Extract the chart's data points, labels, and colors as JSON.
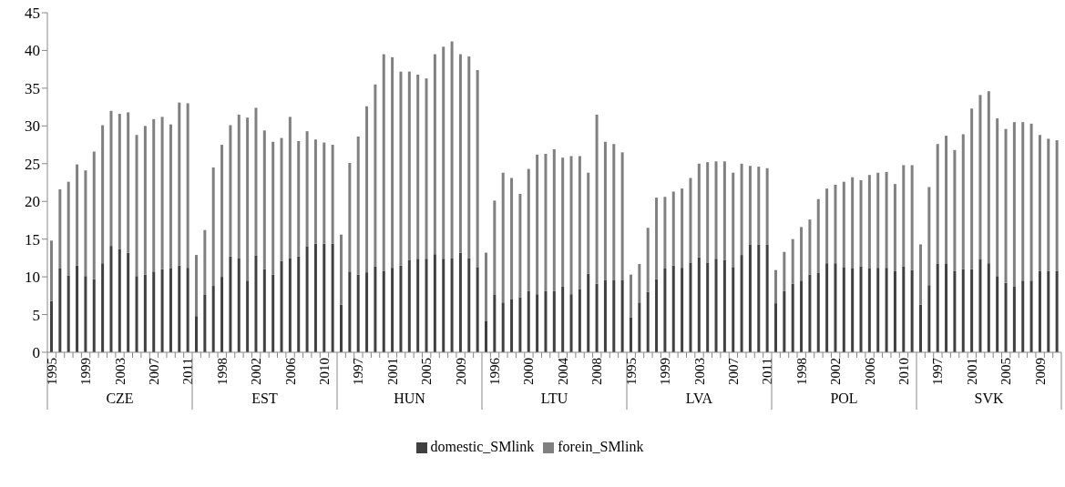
{
  "chart_data": {
    "type": "bar",
    "stacked": true,
    "categories": [
      "1995",
      null,
      null,
      null,
      "1999",
      null,
      null,
      null,
      "2003",
      null,
      null,
      null,
      "2007",
      null,
      null,
      null,
      "2011",
      null,
      null,
      null,
      "1998",
      null,
      null,
      null,
      "2002",
      null,
      null,
      null,
      "2006",
      null,
      null,
      null,
      "2010",
      null,
      null,
      null,
      "1997",
      null,
      null,
      null,
      "2001",
      null,
      null,
      null,
      "2005",
      null,
      null,
      null,
      "2009",
      null,
      null,
      null,
      "1996",
      null,
      null,
      null,
      "2000",
      null,
      null,
      null,
      "2004",
      null,
      null,
      null,
      "2008",
      null,
      null,
      null,
      "1995",
      null,
      null,
      null,
      "1999",
      null,
      null,
      null,
      "2003",
      null,
      null,
      null,
      "2007",
      null,
      null,
      null,
      "2011",
      null,
      null,
      null,
      "1998",
      null,
      null,
      null,
      "2002",
      null,
      null,
      null,
      "2006",
      null,
      null,
      null,
      "2010",
      null,
      null,
      null,
      "1997",
      null,
      null,
      null,
      "2001",
      null,
      null,
      null,
      "2005",
      null,
      null,
      null,
      "2009",
      null,
      null
    ],
    "series": [
      {
        "name": "domestic_SMlink",
        "color": "#404040",
        "values": [
          6.8,
          11.1,
          10.2,
          11.5,
          10.1,
          9.7,
          11.8,
          14.1,
          13.7,
          13.2,
          10.1,
          10.3,
          10.7,
          11.0,
          11.1,
          11.5,
          11.2,
          4.8,
          7.6,
          8.8,
          10.0,
          12.7,
          12.5,
          9.5,
          12.8,
          11.0,
          10.3,
          12.1,
          12.5,
          12.7,
          14.0,
          14.4,
          14.4,
          14.4,
          6.3,
          10.7,
          10.3,
          10.6,
          11.4,
          10.8,
          11.2,
          11.5,
          12.2,
          12.4,
          12.4,
          13.0,
          12.4,
          12.5,
          13.2,
          12.5,
          11.3,
          4.1,
          7.6,
          6.6,
          7.0,
          7.3,
          8.1,
          7.7,
          8.1,
          8.1,
          8.7,
          7.7,
          8.4,
          10.4,
          9.1,
          9.6,
          9.6,
          9.6,
          4.6,
          6.6,
          8.0,
          9.7,
          11.1,
          11.5,
          11.2,
          11.9,
          12.6,
          11.9,
          12.4,
          12.2,
          11.3,
          12.9,
          14.3,
          14.3,
          14.3,
          6.5,
          8.1,
          9.1,
          9.5,
          10.3,
          10.5,
          11.8,
          11.8,
          11.3,
          11.1,
          11.4,
          11.1,
          11.2,
          11.2,
          10.8,
          11.4,
          10.9,
          6.3,
          8.9,
          11.7,
          11.7,
          10.8,
          11.0,
          11.0,
          12.3,
          11.8,
          10.1,
          9.2,
          8.7,
          9.5,
          9.5,
          10.8,
          10.8,
          10.8
        ]
      },
      {
        "name": "forein_SMlink",
        "color": "#808080",
        "values": [
          8.0,
          10.5,
          12.4,
          13.4,
          14.0,
          16.9,
          18.3,
          17.9,
          17.9,
          18.6,
          18.7,
          19.7,
          20.2,
          20.2,
          19.1,
          21.6,
          21.8,
          8.1,
          8.6,
          15.7,
          17.5,
          17.4,
          19.0,
          21.6,
          19.6,
          18.4,
          17.6,
          16.3,
          18.7,
          15.3,
          15.3,
          13.8,
          13.4,
          13.1,
          9.3,
          14.4,
          18.3,
          22.0,
          24.1,
          28.7,
          27.9,
          25.7,
          25.0,
          24.4,
          23.9,
          26.5,
          28.1,
          28.7,
          26.3,
          26.7,
          26.1,
          9.1,
          12.5,
          17.2,
          16.1,
          13.7,
          16.2,
          18.5,
          18.2,
          18.8,
          17.1,
          18.3,
          17.6,
          13.4,
          22.4,
          18.3,
          18.0,
          16.9,
          5.7,
          5.1,
          8.5,
          10.8,
          9.5,
          9.8,
          10.5,
          11.2,
          12.4,
          13.3,
          12.9,
          13.1,
          12.5,
          12.1,
          10.4,
          10.3,
          10.1,
          4.4,
          5.2,
          5.9,
          7.1,
          7.3,
          9.8,
          9.9,
          10.4,
          11.3,
          12.1,
          11.4,
          12.4,
          12.6,
          12.7,
          11.5,
          13.4,
          13.9,
          8.0,
          13.0,
          15.9,
          17.0,
          16.0,
          17.9,
          21.3,
          21.8,
          22.8,
          20.9,
          20.4,
          21.8,
          21.0,
          20.8,
          18.0,
          17.5,
          17.3
        ]
      }
    ],
    "annotations": [
      "CZE",
      "EST",
      "HUN",
      "LTU",
      "LVA",
      "POL",
      "SVK"
    ],
    "ylim": [
      0,
      45
    ],
    "yticks": [
      0,
      5,
      10,
      15,
      20,
      25,
      30,
      35,
      40,
      45
    ],
    "grid": false,
    "legend": "bottom"
  }
}
